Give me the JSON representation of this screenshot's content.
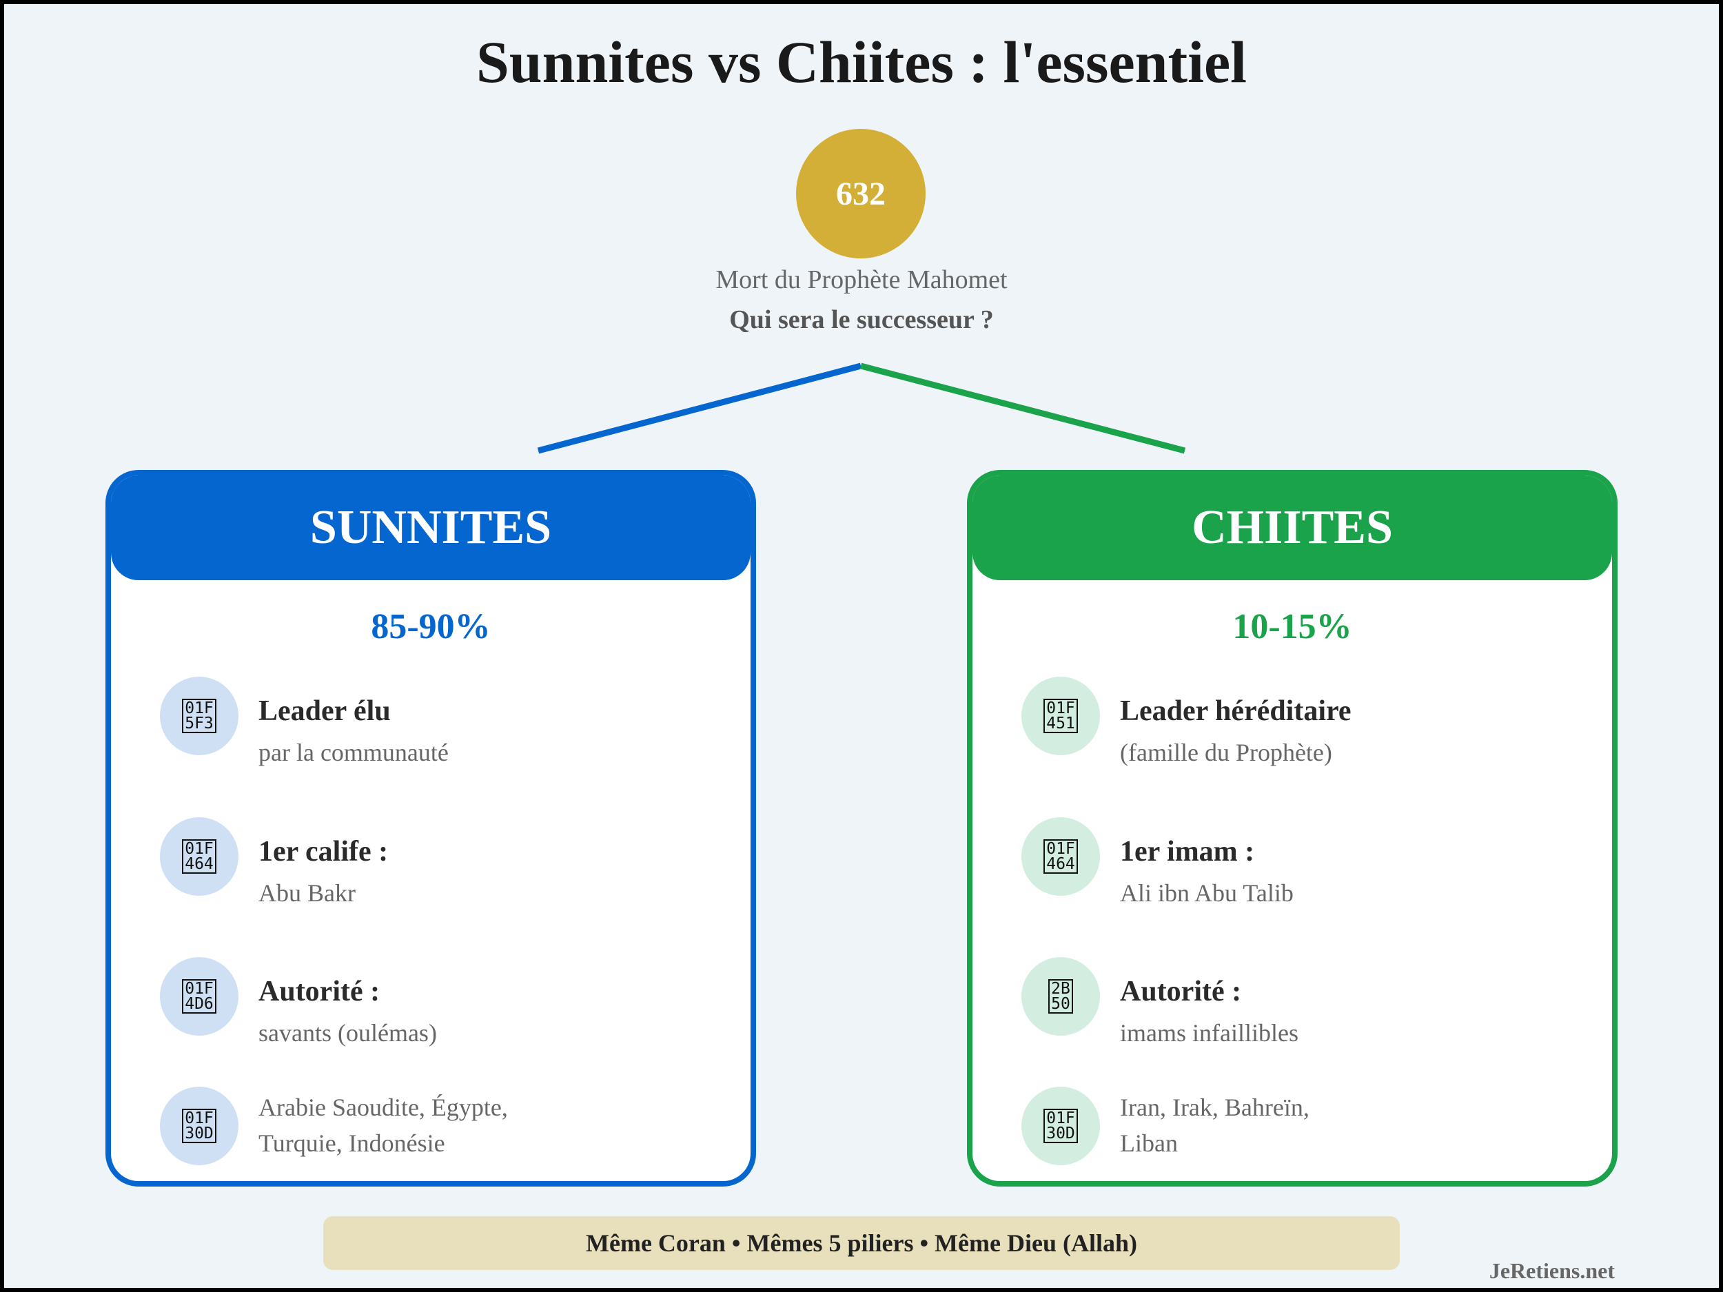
{
  "title": "Sunnites vs Chiites : l'essentiel",
  "event": {
    "year": "632",
    "label": "Mort du Prophète Mahomet",
    "question": "Qui sera le successeur ?"
  },
  "colors": {
    "sunni": "#0566d0",
    "shia": "#1aa34a",
    "gold": "#d4af37",
    "banner": "#e8dfbd",
    "background": "#eff4f8"
  },
  "sunni": {
    "name": "SUNNITES",
    "share": "85-90%",
    "rows": [
      {
        "icon": "ballot-box-icon",
        "code": "01F\n5F3",
        "title": "Leader élu",
        "sub": "par la communauté"
      },
      {
        "icon": "person-silhouette-icon",
        "code": "01F\n464",
        "title": "1er calife :",
        "sub": "Abu Bakr"
      },
      {
        "icon": "open-book-icon",
        "code": "01F\n4D6",
        "title": "Autorité :",
        "sub": "savants (oulémas)"
      },
      {
        "icon": "globe-icon",
        "code": "01F\n30D",
        "title": "",
        "sub": "Arabie Saoudite, Égypte,",
        "sub2": "Turquie, Indonésie"
      }
    ]
  },
  "shia": {
    "name": "CHIITES",
    "share": "10-15%",
    "rows": [
      {
        "icon": "crown-icon",
        "code": "01F\n451",
        "title": "Leader héréditaire",
        "sub": "(famille du Prophète)"
      },
      {
        "icon": "person-silhouette-icon",
        "code": "01F\n464",
        "title": "1er imam :",
        "sub": "Ali ibn Abu Talib"
      },
      {
        "icon": "star-icon",
        "code": "2B\n50",
        "title": "Autorité :",
        "sub": "imams infaillibles"
      },
      {
        "icon": "globe-icon",
        "code": "01F\n30D",
        "title": "",
        "sub": "Iran, Irak, Bahreïn,",
        "sub2": "Liban"
      }
    ]
  },
  "footer": "Même Coran • Mêmes 5 piliers • Même Dieu (Allah)",
  "watermark": "JeRetiens.net"
}
